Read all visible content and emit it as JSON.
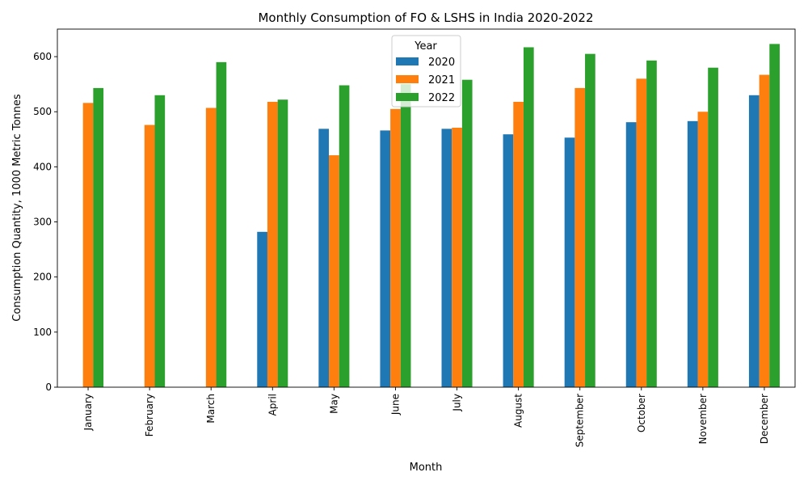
{
  "chart_data": {
    "type": "bar",
    "title": "Monthly Consumption of FO & LSHS in India 2020-2022",
    "xlabel": "Month",
    "ylabel": "Consumption Quantity, 1000 Metric Tonnes",
    "ylim": [
      0,
      650
    ],
    "yticks": [
      0,
      100,
      200,
      300,
      400,
      500,
      600
    ],
    "categories": [
      "January",
      "February",
      "March",
      "April",
      "May",
      "June",
      "July",
      "August",
      "September",
      "October",
      "November",
      "December"
    ],
    "legend": {
      "title": "Year",
      "placement": "top-center"
    },
    "grid": false,
    "series": [
      {
        "name": "2020",
        "color": "#1f77b4",
        "values": [
          null,
          null,
          null,
          282,
          469,
          466,
          469,
          459,
          453,
          481,
          483,
          530
        ]
      },
      {
        "name": "2021",
        "color": "#ff7f0e",
        "values": [
          516,
          476,
          507,
          518,
          421,
          505,
          471,
          518,
          543,
          560,
          500,
          567
        ]
      },
      {
        "name": "2022",
        "color": "#2ca02c",
        "values": [
          543,
          530,
          590,
          522,
          548,
          550,
          558,
          617,
          605,
          593,
          580,
          623
        ]
      }
    ]
  }
}
